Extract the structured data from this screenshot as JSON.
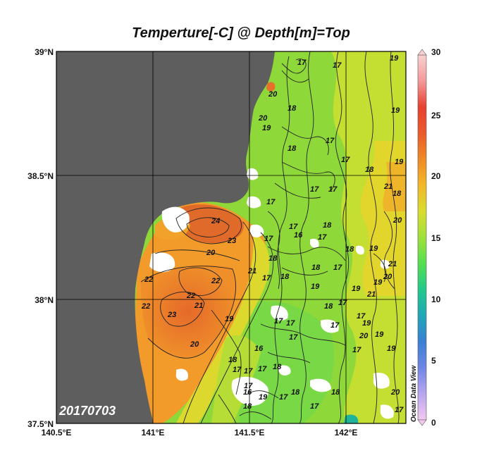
{
  "title": "Temperture[-C] @ Depth[m]=Top",
  "date_stamp": "20170703",
  "watermark": "Ocean Data View",
  "lat_labels": [
    "39°N",
    "38.5°N",
    "38°N",
    "37.5°N"
  ],
  "lon_labels": [
    "140.5°E",
    "141°E",
    "141.5°E",
    "142°E"
  ],
  "colorbar": {
    "labels": [
      "30",
      "25",
      "20",
      "15",
      "10",
      "5",
      "0"
    ],
    "min": 0,
    "max": 30,
    "palette": [
      "#f4c8f0",
      "#b9a5ef",
      "#6f86e6",
      "#3a7fd6",
      "#1fa7b7",
      "#22c98a",
      "#55df4f",
      "#9fe13a",
      "#d8dc2e",
      "#f2b82a",
      "#f08a25",
      "#ea5a2b",
      "#e8402f",
      "#f59a9a",
      "#f9d0d0"
    ]
  },
  "colors": {
    "land": "#5e5e5e",
    "grid": "#000000",
    "contour": "#222222"
  },
  "contour_labels": [
    "17",
    "19",
    "17",
    "19",
    "18",
    "17",
    "18",
    "17",
    "19",
    "18",
    "17",
    "19",
    "18",
    "17",
    "20",
    "21",
    "20",
    "20",
    "24",
    "23",
    "20",
    "21",
    "22",
    "22",
    "22",
    "21",
    "22",
    "23",
    "20",
    "19",
    "18",
    "17",
    "17",
    "16",
    "17",
    "17",
    "18",
    "17",
    "19",
    "18",
    "18",
    "17",
    "17",
    "16",
    "17",
    "18",
    "19",
    "21",
    "20",
    "17",
    "19",
    "17",
    "17",
    "17",
    "18",
    "18",
    "17",
    "21",
    "19",
    "19",
    "19",
    "20",
    "20",
    "18",
    "17",
    "17",
    "16",
    "17",
    "17",
    "18",
    "17",
    "19",
    "18",
    "18",
    "17",
    "19",
    "17"
  ]
}
